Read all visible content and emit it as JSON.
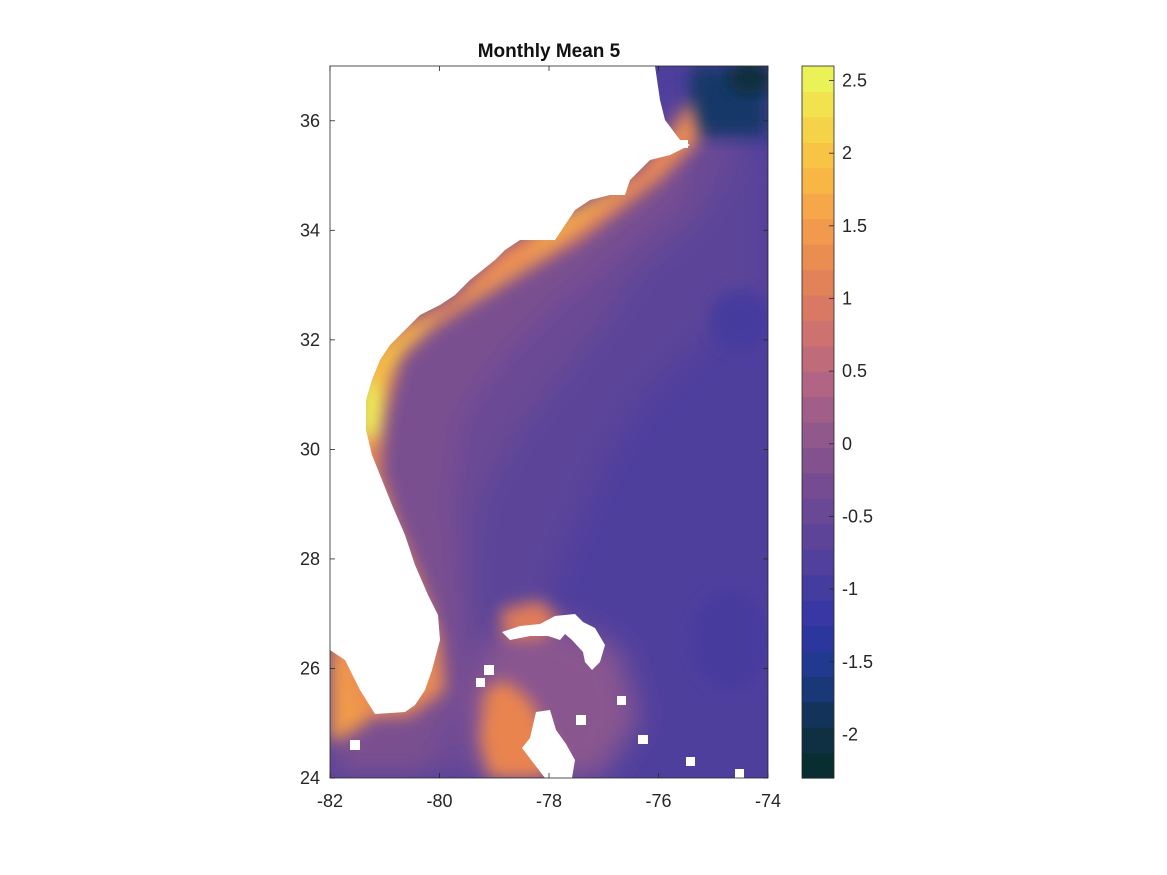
{
  "chart_data": {
    "type": "heatmap",
    "subtype": "filled-contour map",
    "title": "Monthly Mean 5",
    "xlabel": "",
    "ylabel": "",
    "xlim": [
      -82,
      -74
    ],
    "ylim": [
      24,
      37
    ],
    "x_ticks": [
      -82,
      -80,
      -78,
      -76,
      -74
    ],
    "x_tick_labels": [
      "-82",
      "-80",
      "-78",
      "-76",
      "-74"
    ],
    "y_ticks": [
      24,
      26,
      28,
      30,
      32,
      34,
      36
    ],
    "y_tick_labels": [
      "24",
      "26",
      "28",
      "30",
      "32",
      "34",
      "36"
    ],
    "grid": false,
    "legend": "none",
    "colorbar": {
      "position": "right",
      "range": [
        -2.3,
        2.6
      ],
      "ticks": [
        2.5,
        2,
        1.5,
        1,
        0.5,
        0,
        -0.5,
        -1,
        -1.5,
        -2
      ],
      "tick_labels": [
        "2.5",
        "2",
        "1.5",
        "1",
        "0.5",
        "0",
        "-0.5",
        "-1",
        "-1.5",
        "-2"
      ],
      "levels": 28,
      "colormap": [
        "#062d2a",
        "#12304b",
        "#1b3b87",
        "#3135a6",
        "#4b3e9e",
        "#634697",
        "#7b4e8f",
        "#985b8a",
        "#b96780",
        "#d47568",
        "#e68653",
        "#f4a04b",
        "#f9bd43",
        "#f4da4a",
        "#e8fa5b"
      ]
    },
    "missing_value_color": "#ffffff",
    "field_description": {
      "open_ocean_east": -0.9,
      "shelf_interior": -0.3,
      "coastal_band": 1.5,
      "georgia_coast_peak": 2.5,
      "northeast_corner_min": -2.2
    }
  }
}
